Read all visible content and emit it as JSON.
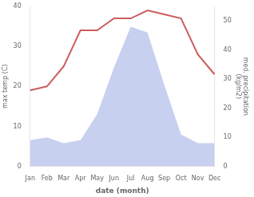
{
  "chart_data": {
    "type": "line",
    "categories": [
      "Jan",
      "Feb",
      "Mar",
      "Apr",
      "May",
      "Jun",
      "Jul",
      "Aug",
      "Sep",
      "Oct",
      "Nov",
      "Dec"
    ],
    "xlabel": "date (month)",
    "ylabel": "max temp (C)",
    "y2label": "med. precipitation\n(kg/m2)",
    "series": [
      {
        "type": "area",
        "color": "#c8d0f0",
        "axis": "y2",
        "values": [
          9,
          10,
          8,
          9,
          18,
          34,
          48,
          46,
          28,
          11,
          8,
          8
        ]
      },
      {
        "type": "line",
        "color": "#cd5c5c",
        "values": [
          19,
          20,
          25,
          34,
          34,
          37,
          37,
          39,
          38,
          37,
          28,
          23
        ]
      }
    ],
    "ylim": [
      0,
      40
    ],
    "yticks": [
      0,
      10,
      20,
      30,
      40
    ],
    "y2lim": [
      0,
      55
    ],
    "y2ticks": [
      0,
      10,
      20,
      30,
      40,
      50
    ],
    "grid": false
  }
}
